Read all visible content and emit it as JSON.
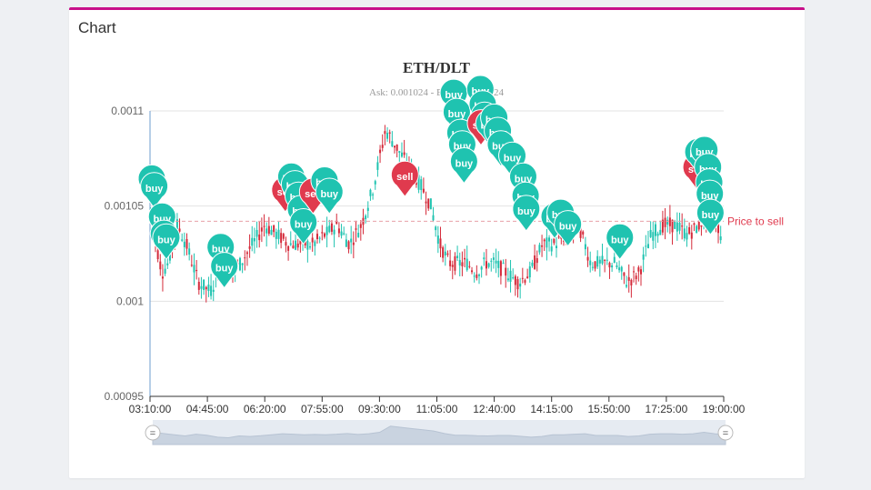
{
  "panel": {
    "title": "Chart"
  },
  "chart_data": {
    "type": "candlestick",
    "title": "ETH/DLT",
    "subtitle": "Ask: 0.001024 - Bid: 0.00102124",
    "y_ticks": [
      "0.0011",
      "0.00105",
      "0.001",
      "0.00095"
    ],
    "ylim": [
      0.00095,
      0.0011
    ],
    "x_ticks": [
      "03:10:00",
      "04:45:00",
      "06:20:00",
      "07:55:00",
      "09:30:00",
      "11:05:00",
      "12:40:00",
      "14:15:00",
      "15:50:00",
      "17:25:00",
      "19:00:00"
    ],
    "x_range_minutes": [
      190,
      1140
    ],
    "colors": {
      "up": "#1fc3b0",
      "down": "#d42a3a",
      "buy": "#1fc3b0",
      "sell": "#e03a4e",
      "axis": "#6e9ccf",
      "grid": "#e3e3e3"
    },
    "price_line": {
      "label": "Price to sell",
      "value": 0.001042
    },
    "price_path": [
      [
        190,
        0.00105
      ],
      [
        200,
        0.00103
      ],
      [
        210,
        0.001015
      ],
      [
        220,
        0.00102
      ],
      [
        235,
        0.00104
      ],
      [
        250,
        0.00103
      ],
      [
        270,
        0.00101
      ],
      [
        290,
        0.001005
      ],
      [
        310,
        0.00102
      ],
      [
        325,
        0.001015
      ],
      [
        340,
        0.00102
      ],
      [
        360,
        0.00103
      ],
      [
        380,
        0.00104
      ],
      [
        400,
        0.001035
      ],
      [
        420,
        0.00103
      ],
      [
        440,
        0.00103
      ],
      [
        460,
        0.00103
      ],
      [
        480,
        0.001035
      ],
      [
        500,
        0.00104
      ],
      [
        520,
        0.00103
      ],
      [
        540,
        0.00104
      ],
      [
        560,
        0.00106
      ],
      [
        580,
        0.00109
      ],
      [
        600,
        0.00108
      ],
      [
        620,
        0.00107
      ],
      [
        640,
        0.00106
      ],
      [
        655,
        0.00105
      ],
      [
        670,
        0.00103
      ],
      [
        685,
        0.00102
      ],
      [
        700,
        0.00102
      ],
      [
        715,
        0.00102
      ],
      [
        730,
        0.001015
      ],
      [
        745,
        0.00102
      ],
      [
        760,
        0.00102
      ],
      [
        780,
        0.001015
      ],
      [
        800,
        0.00101
      ],
      [
        820,
        0.001015
      ],
      [
        840,
        0.00103
      ],
      [
        860,
        0.00103
      ],
      [
        880,
        0.001035
      ],
      [
        900,
        0.00104
      ],
      [
        920,
        0.00102
      ],
      [
        940,
        0.00102
      ],
      [
        960,
        0.00102
      ],
      [
        980,
        0.00101
      ],
      [
        1000,
        0.001015
      ],
      [
        1020,
        0.001035
      ],
      [
        1040,
        0.00104
      ],
      [
        1060,
        0.00104
      ],
      [
        1080,
        0.001035
      ],
      [
        1100,
        0.00104
      ],
      [
        1120,
        0.00105
      ],
      [
        1130,
        0.00104
      ],
      [
        1140,
        0.00103
      ]
    ],
    "markers": [
      {
        "type": "buy",
        "t": 193,
        "v": 0.001053
      },
      {
        "type": "buy",
        "t": 197,
        "v": 0.001049
      },
      {
        "type": "buy",
        "t": 210,
        "v": 0.001033
      },
      {
        "type": "buy",
        "t": 213,
        "v": 0.001024
      },
      {
        "type": "buy",
        "t": 217,
        "v": 0.001022
      },
      {
        "type": "buy",
        "t": 307,
        "v": 0.001017
      },
      {
        "type": "buy",
        "t": 313,
        "v": 0.001007
      },
      {
        "type": "sell",
        "t": 414,
        "v": 0.001047
      },
      {
        "type": "buy",
        "t": 424,
        "v": 0.001054
      },
      {
        "type": "buy",
        "t": 430,
        "v": 0.00105
      },
      {
        "type": "buy",
        "t": 436,
        "v": 0.001044
      },
      {
        "type": "buy",
        "t": 440,
        "v": 0.001037
      },
      {
        "type": "buy",
        "t": 444,
        "v": 0.00103
      },
      {
        "type": "sell",
        "t": 460,
        "v": 0.001046
      },
      {
        "type": "buy",
        "t": 479,
        "v": 0.001052
      },
      {
        "type": "buy",
        "t": 487,
        "v": 0.001046
      },
      {
        "type": "sell",
        "t": 612,
        "v": 0.001055
      },
      {
        "type": "buy",
        "t": 693,
        "v": 0.001098
      },
      {
        "type": "buy",
        "t": 698,
        "v": 0.001088
      },
      {
        "type": "buy",
        "t": 704,
        "v": 0.001077
      },
      {
        "type": "buy",
        "t": 707,
        "v": 0.001071
      },
      {
        "type": "buy",
        "t": 710,
        "v": 0.001062
      },
      {
        "type": "buy",
        "t": 737,
        "v": 0.0011
      },
      {
        "type": "buy",
        "t": 741,
        "v": 0.001092
      },
      {
        "type": "buy",
        "t": 744,
        "v": 0.001086
      },
      {
        "type": "sell",
        "t": 738,
        "v": 0.001082
      },
      {
        "type": "buy",
        "t": 752,
        "v": 0.001082
      },
      {
        "type": "buy",
        "t": 760,
        "v": 0.001085
      },
      {
        "type": "buy",
        "t": 766,
        "v": 0.001078
      },
      {
        "type": "buy",
        "t": 771,
        "v": 0.001071
      },
      {
        "type": "buy",
        "t": 790,
        "v": 0.001065
      },
      {
        "type": "buy",
        "t": 808,
        "v": 0.001054
      },
      {
        "type": "buy",
        "t": 812,
        "v": 0.001044
      },
      {
        "type": "buy",
        "t": 813,
        "v": 0.001037
      },
      {
        "type": "buy",
        "t": 860,
        "v": 0.001033
      },
      {
        "type": "buy",
        "t": 870,
        "v": 0.001035
      },
      {
        "type": "buy",
        "t": 882,
        "v": 0.001029
      },
      {
        "type": "buy",
        "t": 968,
        "v": 0.001022
      },
      {
        "type": "sell",
        "t": 1095,
        "v": 0.001059
      },
      {
        "type": "buy",
        "t": 1098,
        "v": 0.001067
      },
      {
        "type": "buy",
        "t": 1108,
        "v": 0.001068
      },
      {
        "type": "buy",
        "t": 1114,
        "v": 0.001059
      },
      {
        "type": "buy",
        "t": 1116,
        "v": 0.001051
      },
      {
        "type": "buy",
        "t": 1117,
        "v": 0.001045
      },
      {
        "type": "buy",
        "t": 1118,
        "v": 0.001035
      }
    ],
    "navigator": {
      "handle_glyph": "=",
      "overview": [
        0.5,
        0.45,
        0.4,
        0.35,
        0.42,
        0.38,
        0.3,
        0.28,
        0.35,
        0.33,
        0.36,
        0.4,
        0.44,
        0.42,
        0.4,
        0.41,
        0.4,
        0.42,
        0.45,
        0.41,
        0.44,
        0.5,
        0.75,
        0.7,
        0.65,
        0.6,
        0.55,
        0.45,
        0.38,
        0.38,
        0.36,
        0.35,
        0.37,
        0.37,
        0.34,
        0.3,
        0.33,
        0.4,
        0.4,
        0.42,
        0.44,
        0.37,
        0.37,
        0.37,
        0.33,
        0.35,
        0.42,
        0.44,
        0.44,
        0.42,
        0.44,
        0.5,
        0.44,
        0.4
      ]
    }
  }
}
